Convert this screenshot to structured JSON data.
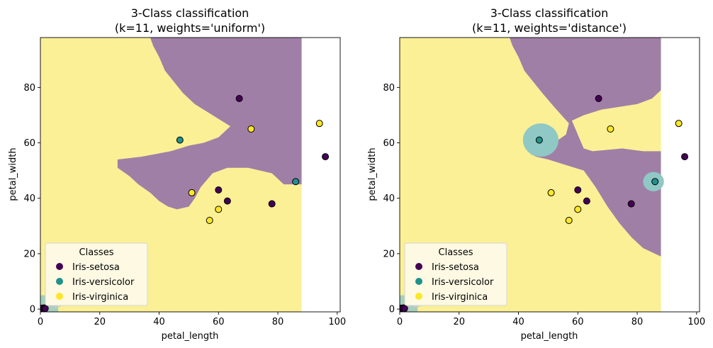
{
  "colors": {
    "setosa": "#440154",
    "versicolor": "#21918c",
    "virginica": "#fde725",
    "region_setosa": "#a07fa7",
    "region_versicolor": "#90c8c5",
    "region_virginica": "#fbf096",
    "legend_bg": "#fdf9e3"
  },
  "legend": {
    "title": "Classes",
    "entries": [
      "Iris-setosa",
      "Iris-versicolor",
      "Iris-virginica"
    ]
  },
  "chart_data": [
    {
      "type": "scatter",
      "title_line1": "3-Class classification",
      "title_line2": "(k=11, weights='uniform')",
      "xlabel": "petal_length",
      "ylabel": "petal_width",
      "xlim": [
        0,
        101
      ],
      "ylim": [
        -1,
        98
      ],
      "xticks": [
        0,
        20,
        40,
        60,
        80,
        100
      ],
      "yticks": [
        0,
        20,
        40,
        60,
        80
      ],
      "legend_position": "lower-left",
      "points": [
        {
          "x": 67,
          "y": 76,
          "class": "setosa"
        },
        {
          "x": 96,
          "y": 55,
          "class": "setosa"
        },
        {
          "x": 60,
          "y": 43,
          "class": "setosa"
        },
        {
          "x": 63,
          "y": 39,
          "class": "setosa"
        },
        {
          "x": 78,
          "y": 38,
          "class": "setosa"
        },
        {
          "x": 47,
          "y": 61,
          "class": "versicolor"
        },
        {
          "x": 86,
          "y": 46,
          "class": "versicolor"
        },
        {
          "x": 94,
          "y": 67,
          "class": "virginica"
        },
        {
          "x": 71,
          "y": 65,
          "class": "virginica"
        },
        {
          "x": 51,
          "y": 42,
          "class": "virginica"
        },
        {
          "x": 60,
          "y": 36,
          "class": "virginica"
        },
        {
          "x": 57,
          "y": 32,
          "class": "virginica"
        }
      ],
      "regions": [
        {
          "class": "setosa",
          "polygon": [
            [
              37,
              98
            ],
            [
              88,
              98
            ],
            [
              88,
              45
            ],
            [
              82,
              45
            ],
            [
              78,
              49
            ],
            [
              70,
              51
            ],
            [
              63,
              51
            ],
            [
              58,
              49
            ],
            [
              54,
              44
            ],
            [
              52,
              40
            ],
            [
              50,
              37
            ],
            [
              46,
              36
            ],
            [
              43,
              37
            ],
            [
              40,
              39
            ],
            [
              37,
              42
            ],
            [
              33,
              45
            ],
            [
              30,
              48
            ],
            [
              26,
              51
            ],
            [
              26,
              54
            ],
            [
              34,
              55
            ],
            [
              44,
              57
            ],
            [
              50,
              59
            ],
            [
              55,
              60
            ],
            [
              60,
              62
            ],
            [
              64,
              66
            ],
            [
              58,
              70
            ],
            [
              52,
              74
            ],
            [
              48,
              78
            ],
            [
              45,
              82
            ],
            [
              42,
              86
            ],
            [
              40,
              91
            ],
            [
              38,
              95
            ]
          ]
        }
      ]
    },
    {
      "type": "scatter",
      "title_line1": "3-Class classification",
      "title_line2": "(k=11, weights='distance')",
      "xlabel": "petal_length",
      "ylabel": "petal_width",
      "xlim": [
        0,
        101
      ],
      "ylim": [
        -1,
        98
      ],
      "xticks": [
        0,
        20,
        40,
        60,
        80,
        100
      ],
      "yticks": [
        0,
        20,
        40,
        60,
        80
      ],
      "legend_position": "lower-left",
      "points": [
        {
          "x": 67,
          "y": 76,
          "class": "setosa"
        },
        {
          "x": 96,
          "y": 55,
          "class": "setosa"
        },
        {
          "x": 60,
          "y": 43,
          "class": "setosa"
        },
        {
          "x": 63,
          "y": 39,
          "class": "setosa"
        },
        {
          "x": 78,
          "y": 38,
          "class": "setosa"
        },
        {
          "x": 47,
          "y": 61,
          "class": "versicolor"
        },
        {
          "x": 86,
          "y": 46,
          "class": "versicolor"
        },
        {
          "x": 94,
          "y": 67,
          "class": "virginica"
        },
        {
          "x": 71,
          "y": 65,
          "class": "virginica"
        },
        {
          "x": 51,
          "y": 42,
          "class": "virginica"
        },
        {
          "x": 60,
          "y": 36,
          "class": "virginica"
        },
        {
          "x": 57,
          "y": 32,
          "class": "virginica"
        }
      ],
      "regions": [
        {
          "class": "setosa",
          "polygon": [
            [
              37,
              98
            ],
            [
              88,
              98
            ],
            [
              88,
              79
            ],
            [
              85,
              76
            ],
            [
              80,
              74
            ],
            [
              74,
              73
            ],
            [
              68,
              72
            ],
            [
              62,
              70
            ],
            [
              58,
              68
            ],
            [
              60,
              63
            ],
            [
              62,
              58
            ],
            [
              65,
              57
            ],
            [
              75,
              58
            ],
            [
              82,
              57
            ],
            [
              88,
              57
            ],
            [
              88,
              19
            ],
            [
              82,
              22
            ],
            [
              78,
              26
            ],
            [
              74,
              31
            ],
            [
              70,
              37
            ],
            [
              66,
              44
            ],
            [
              62,
              50
            ],
            [
              56,
              52
            ],
            [
              50,
              54
            ],
            [
              46,
              55
            ],
            [
              44,
              56
            ],
            [
              52,
              60
            ],
            [
              56,
              63
            ],
            [
              57,
              67
            ],
            [
              52,
              73
            ],
            [
              48,
              78
            ],
            [
              45,
              82
            ],
            [
              42,
              86
            ],
            [
              40,
              91
            ],
            [
              38,
              95
            ]
          ]
        },
        {
          "class": "virginica",
          "polygon": [
            [
              60,
              63
            ],
            [
              64,
              68
            ],
            [
              70,
              70
            ],
            [
              78,
              71
            ],
            [
              86,
              70
            ],
            [
              88,
              68
            ],
            [
              88,
              57
            ],
            [
              82,
              57
            ],
            [
              75,
              58
            ],
            [
              65,
              57
            ],
            [
              62,
              58
            ]
          ]
        },
        {
          "class": "versicolor",
          "ellipse": {
            "cx": 47.5,
            "cy": 61,
            "rx": 6,
            "ry": 6
          }
        },
        {
          "class": "versicolor",
          "ellipse": {
            "cx": 85.5,
            "cy": 46,
            "rx": 3.5,
            "ry": 3.5
          }
        }
      ]
    }
  ]
}
